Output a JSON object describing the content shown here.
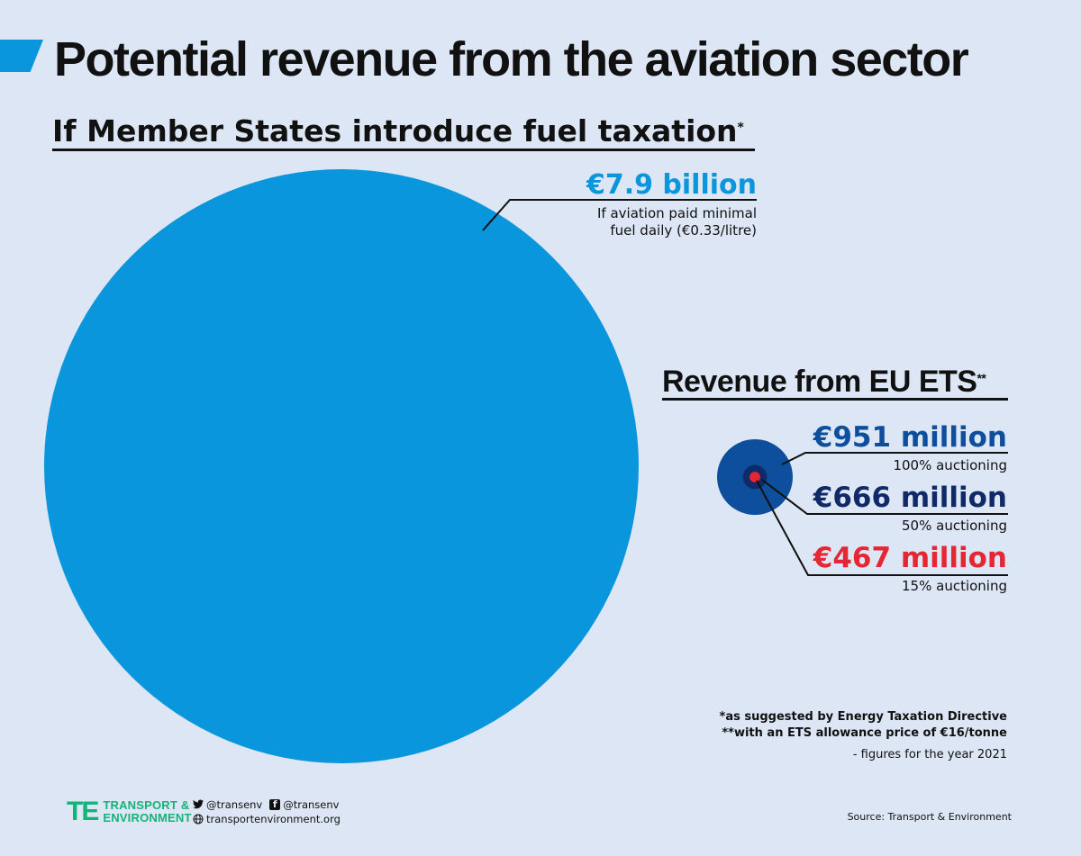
{
  "header": {
    "title": "Potential revenue from the aviation sector",
    "section1_title": "If Member States introduce fuel taxation",
    "section1_mark": "*",
    "section2_title": "Revenue from EU ETS",
    "section2_mark": "**"
  },
  "colors": {
    "fuel": "#0a96dc",
    "ets100": "#0d4f9c",
    "ets50": "#0f2a66",
    "ets15": "#e52633",
    "leader": "#111111"
  },
  "chart_data": {
    "type": "bubble",
    "title": "Potential revenue from the aviation sector",
    "unit": "EUR million",
    "bubbles": [
      {
        "name": "fuel_taxation",
        "value": 7900,
        "label": "€7.9 billion",
        "note_lines": [
          "If aviation paid minimal",
          "fuel daily (€0.33/litre)"
        ]
      },
      {
        "name": "ets_100",
        "value": 951,
        "label": "€951 million",
        "note": "100% auctioning"
      },
      {
        "name": "ets_50",
        "value": 666,
        "label": "€666 million",
        "note": "50% auctioning"
      },
      {
        "name": "ets_15",
        "value": 467,
        "label": "€467 million",
        "note": "15% auctioning"
      }
    ]
  },
  "footnotes": {
    "note1": "*as suggested by Energy Taxation Directive",
    "note2": "**with an ETS allowance price of €16/tonne",
    "note3": "- figures for the year 2021"
  },
  "footer": {
    "logo_mark": "TE",
    "logo_line1": "TRANSPORT &",
    "logo_line2": "ENVIRONMENT",
    "twitter_handle": "@transenv",
    "facebook_handle": "@transenv",
    "website": "transportenvironment.org",
    "source": "Source:  Transport & Environment",
    "icons": {
      "twitter": "twitter-icon",
      "facebook": "facebook-icon",
      "globe": "globe-icon"
    }
  }
}
